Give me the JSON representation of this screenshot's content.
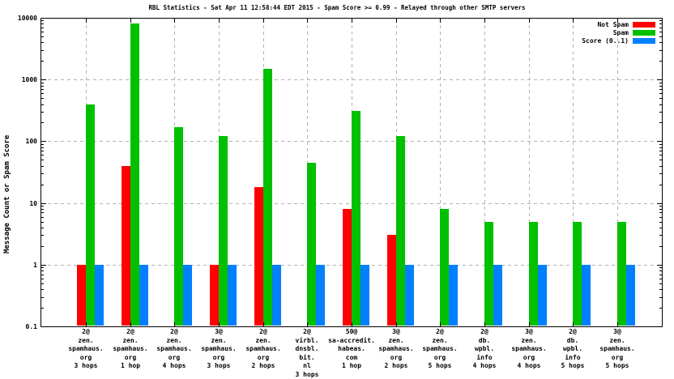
{
  "chart_data": {
    "type": "bar",
    "title": "RBL Statistics - Sat Apr 11 12:58:44 EDT 2015 - Spam Score >= 0.99 - Relayed through other SMTP servers",
    "ylabel": "Message Count or Spam Score",
    "y_scale": "log",
    "ylim": [
      0.1,
      10000
    ],
    "y_ticks": [
      {
        "label": "10000",
        "value": 10000
      },
      {
        "label": "1000",
        "value": 1000
      },
      {
        "label": "100",
        "value": 100
      },
      {
        "label": "10",
        "value": 10
      },
      {
        "label": "1",
        "value": 1
      },
      {
        "label": "0.1",
        "value": 0.1
      }
    ],
    "grid": "dashed gray: horizontal at decades, vertical at each category",
    "legend": {
      "position": "top-right-inside"
    },
    "categories": [
      {
        "lines": [
          "2@",
          "zen.",
          "spamhaus.",
          "org",
          "3 hops"
        ]
      },
      {
        "lines": [
          "2@",
          "zen.",
          "spamhaus.",
          "org",
          "1 hop"
        ]
      },
      {
        "lines": [
          "2@",
          "zen.",
          "spamhaus.",
          "org",
          "4 hops"
        ]
      },
      {
        "lines": [
          "3@",
          "zen.",
          "spamhaus.",
          "org",
          "3 hops"
        ]
      },
      {
        "lines": [
          "2@",
          "zen.",
          "spamhaus.",
          "org",
          "2 hops"
        ]
      },
      {
        "lines": [
          "2@",
          "virbl.",
          "dnsbl.",
          "bit.",
          "nl",
          "3 hops"
        ]
      },
      {
        "lines": [
          "50@",
          "sa-accredit.",
          "habeas.",
          "com",
          "1 hop"
        ]
      },
      {
        "lines": [
          "3@",
          "zen.",
          "spamhaus.",
          "org",
          "2 hops"
        ]
      },
      {
        "lines": [
          "2@",
          "zen.",
          "spamhaus.",
          "org",
          "5 hops"
        ]
      },
      {
        "lines": [
          "2@",
          "db.",
          "wpbl.",
          "info",
          "4 hops"
        ]
      },
      {
        "lines": [
          "3@",
          "zen.",
          "spamhaus.",
          "org",
          "4 hops"
        ]
      },
      {
        "lines": [
          "2@",
          "db.",
          "wpbl.",
          "info",
          "5 hops"
        ]
      },
      {
        "lines": [
          "3@",
          "zen.",
          "spamhaus.",
          "org",
          "5 hops"
        ]
      }
    ],
    "series": [
      {
        "name": "Not Spam",
        "color": "#ff0000",
        "values": [
          1,
          40,
          0,
          1,
          18,
          0,
          8,
          3,
          0,
          0,
          0,
          0,
          0
        ]
      },
      {
        "name": "Spam",
        "color": "#00c000",
        "values": [
          400,
          8000,
          170,
          120,
          1500,
          45,
          310,
          120,
          8,
          5,
          5,
          5,
          5
        ]
      },
      {
        "name": "Score (0..1)",
        "color": "#0080ff",
        "values": [
          1,
          1,
          1,
          1,
          1,
          1,
          1,
          1,
          1,
          1,
          1,
          1,
          1
        ]
      }
    ]
  }
}
